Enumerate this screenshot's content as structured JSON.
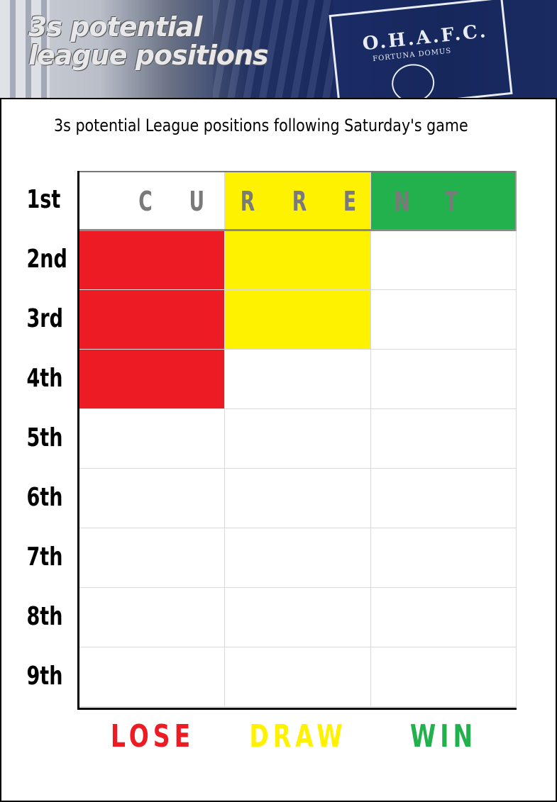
{
  "header": {
    "title_line1": "3s potential",
    "title_line2": "league positions",
    "badge_text": "O.H.A.F.C.",
    "badge_motto": "FORTUNA DOMUS"
  },
  "chart_title": "3s potential League positions following Saturday's game",
  "chart_data": {
    "type": "table",
    "rows": [
      "1st",
      "2nd",
      "3rd",
      "4th",
      "5th",
      "6th",
      "7th",
      "8th",
      "9th"
    ],
    "columns": [
      "LOSE",
      "DRAW",
      "WIN"
    ],
    "current_label": "CURRENT",
    "current_position": "1st",
    "possible_positions": {
      "LOSE": [
        "1st",
        "2nd",
        "3rd",
        "4th"
      ],
      "DRAW": [
        "1st",
        "2nd",
        "3rd"
      ],
      "WIN": [
        "1st"
      ]
    },
    "colors": {
      "LOSE": "#ed1c24",
      "DRAW": "#fff200",
      "WIN": "#22b14c",
      "current_lose_cell": "#ffffff",
      "empty": "#ffffff"
    }
  }
}
